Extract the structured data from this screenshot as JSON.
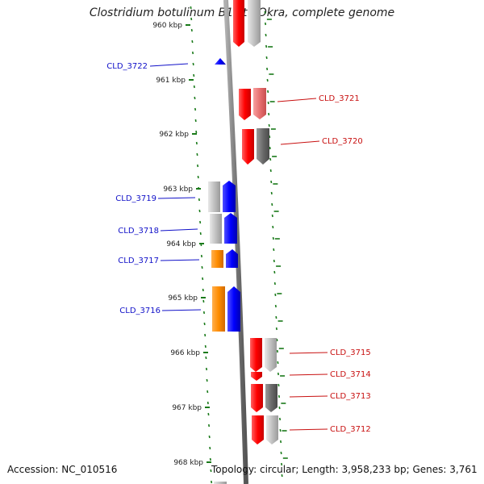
{
  "title": "Clostridium botulinum B1 str. Okra, complete genome",
  "accession": "Accession: NC_010516",
  "topology": "Topology: circular; Length: 3,958,233 bp; Genes: 3,761",
  "kbp_labels": [
    "960 kbp",
    "961 kbp",
    "962 kbp",
    "963 kbp",
    "964 kbp",
    "965 kbp",
    "966 kbp",
    "967 kbp",
    "968 kbp"
  ],
  "reverse_genes": [
    "CLD_3722",
    "CLD_3719",
    "CLD_3718",
    "CLD_3717",
    "CLD_3716"
  ],
  "forward_genes": [
    "CLD_3721",
    "CLD_3720",
    "CLD_3715",
    "CLD_3714",
    "CLD_3713",
    "CLD_3712"
  ],
  "colors": {
    "forward": "#ff0000",
    "reverse": "#0000ff",
    "orange": "#ff8c00",
    "backbone": "#808080",
    "tick": "#1a7a1a"
  }
}
